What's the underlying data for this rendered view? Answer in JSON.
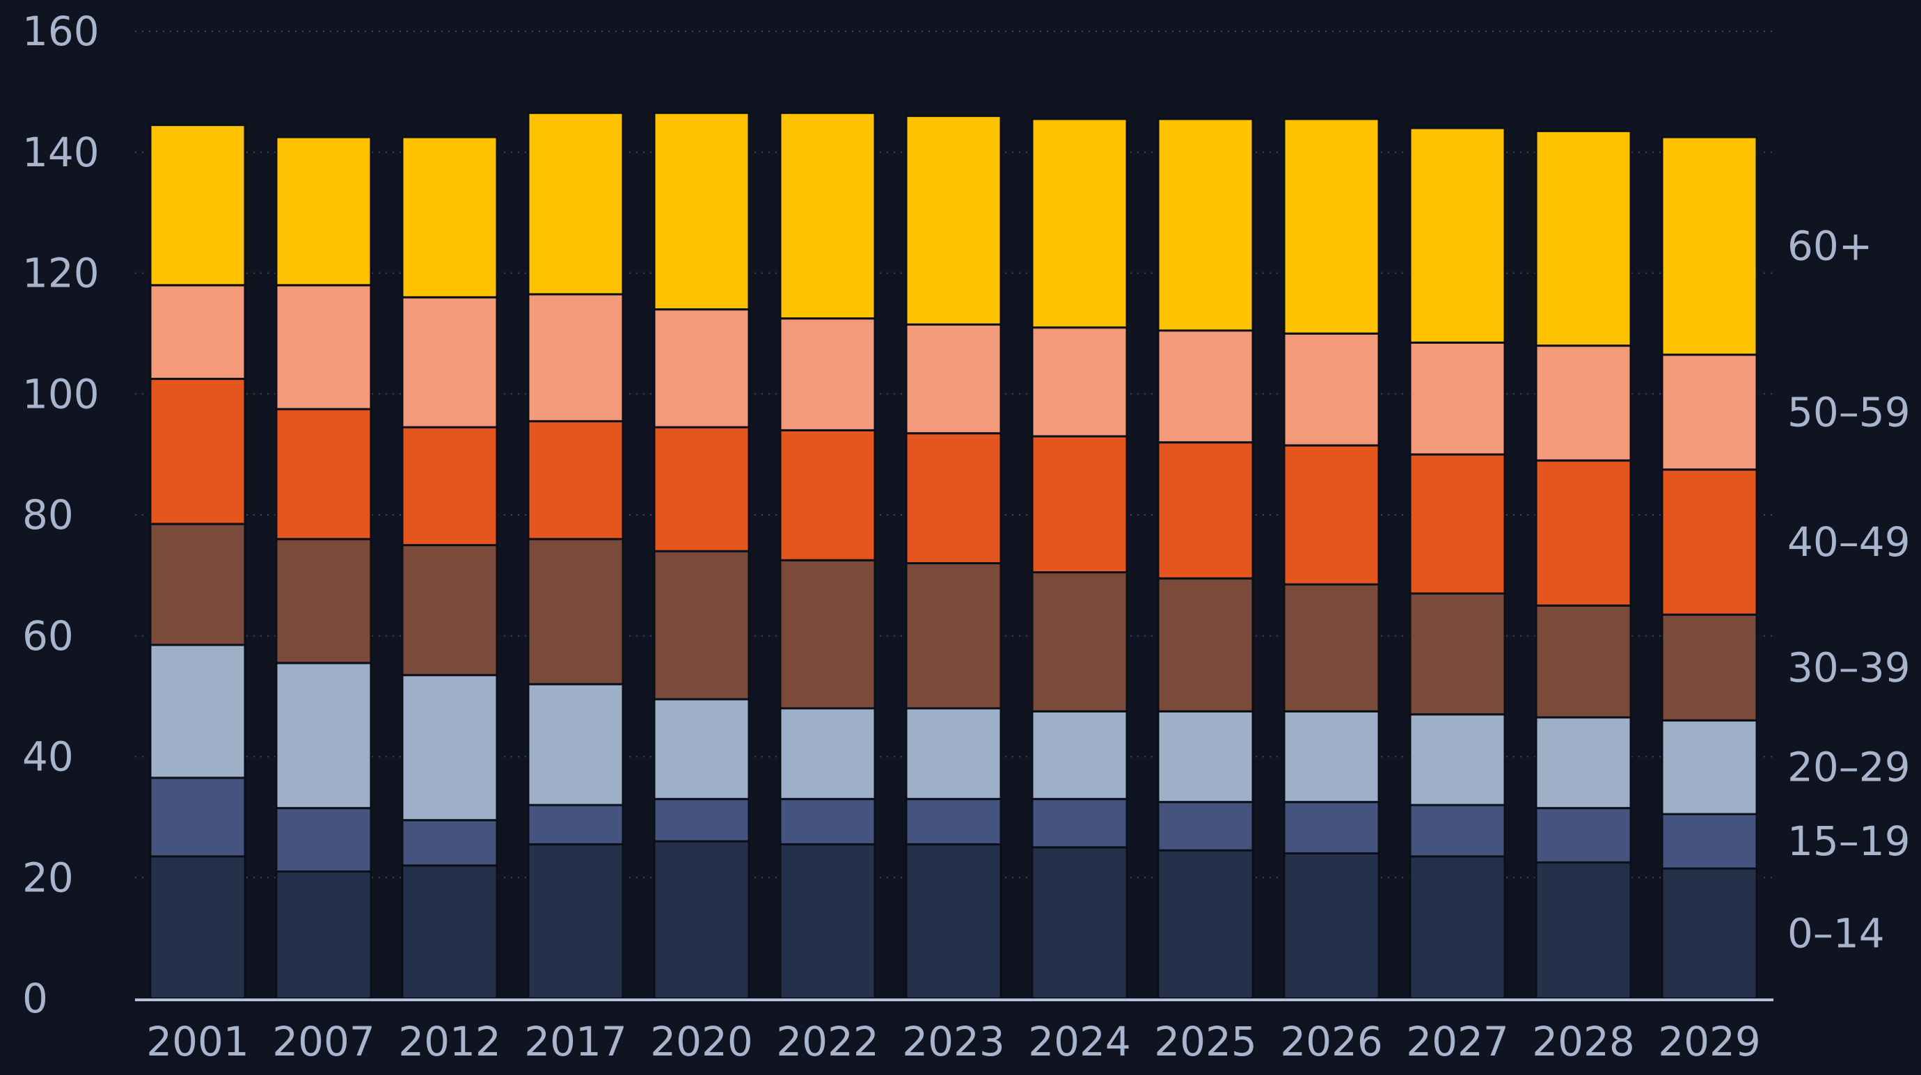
{
  "chart_data": {
    "type": "bar",
    "stacked": true,
    "categories": [
      "2001",
      "2007",
      "2012",
      "2017",
      "2020",
      "2022",
      "2023",
      "2024",
      "2025",
      "2026",
      "2027",
      "2028",
      "2029"
    ],
    "ylim": [
      0,
      160
    ],
    "yticks": [
      0,
      20,
      40,
      60,
      80,
      100,
      120,
      140,
      160
    ],
    "grid": true,
    "legend_placement": "right",
    "series": [
      {
        "name": "0–14",
        "color": "#25304a",
        "values": [
          23.5,
          21.0,
          22.0,
          25.5,
          26.0,
          25.5,
          25.5,
          25.0,
          24.5,
          24.0,
          23.5,
          22.5,
          21.5
        ]
      },
      {
        "name": "15–19",
        "color": "#45547f",
        "values": [
          13.0,
          10.5,
          7.5,
          6.5,
          7.0,
          7.5,
          7.5,
          8.0,
          8.0,
          8.5,
          8.5,
          9.0,
          9.0
        ]
      },
      {
        "name": "20–29",
        "color": "#9eafc8",
        "values": [
          22.0,
          24.0,
          24.0,
          20.0,
          16.5,
          15.0,
          15.0,
          14.5,
          15.0,
          15.0,
          15.0,
          15.0,
          15.5
        ]
      },
      {
        "name": "30–39",
        "color": "#7a4a3a",
        "values": [
          20.0,
          20.5,
          21.5,
          24.0,
          24.5,
          24.5,
          24.0,
          23.0,
          22.0,
          21.0,
          20.0,
          18.5,
          17.5
        ]
      },
      {
        "name": "40–49",
        "color": "#e5561f",
        "values": [
          24.0,
          21.5,
          19.5,
          19.5,
          20.5,
          21.5,
          21.5,
          22.5,
          22.5,
          23.0,
          23.0,
          24.0,
          24.0
        ]
      },
      {
        "name": "50–59",
        "color": "#f29a7a",
        "values": [
          15.5,
          20.5,
          21.5,
          21.0,
          19.5,
          18.5,
          18.0,
          18.0,
          18.5,
          18.5,
          18.5,
          19.0,
          19.0
        ]
      },
      {
        "name": "60+",
        "color": "#ffc200",
        "values": [
          26.5,
          24.5,
          26.5,
          30.0,
          32.5,
          34.0,
          34.5,
          34.5,
          35.0,
          35.5,
          35.5,
          35.5,
          36.0
        ]
      }
    ]
  }
}
